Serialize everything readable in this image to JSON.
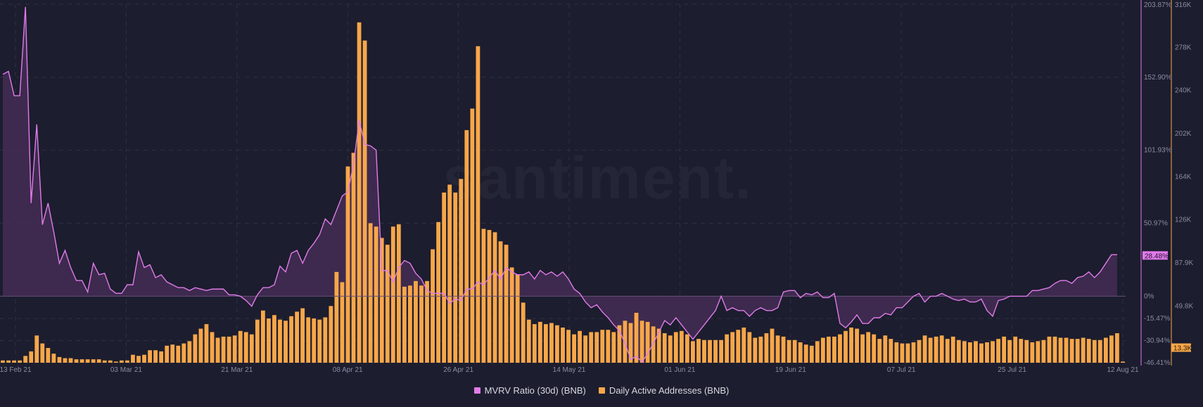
{
  "watermark": "santiment.",
  "colors": {
    "background": "#1c1d2e",
    "mvrv": "#e07bea",
    "mvrv_fill": "#4a2f5a",
    "daa": "#f7a749",
    "grid": "#2e3049",
    "axis_text": "#8a8ca3"
  },
  "legend": [
    {
      "label": "MVRV Ratio (30d) (BNB)",
      "color": "#e07bea"
    },
    {
      "label": "Daily Active Addresses (BNB)",
      "color": "#f7a749"
    }
  ],
  "chart_data": {
    "type": "bar+line",
    "x_ticks": [
      "13 Feb 21",
      "03 Mar 21",
      "21 Mar 21",
      "08 Apr 21",
      "26 Apr 21",
      "14 May 21",
      "01 Jun 21",
      "19 Jun 21",
      "07 Jul 21",
      "25 Jul 21",
      "12 Aug 21"
    ],
    "x_range": [
      "13 Feb 21",
      "12 Aug 21"
    ],
    "left_axis": {
      "series": "MVRV Ratio (30d) (BNB)",
      "ticks": [
        "203.87%",
        "152.90%",
        "101.93%",
        "50.97%",
        "0%",
        "-15.47%",
        "-30.94%",
        "-46.41%"
      ],
      "current_label": "28.48%",
      "unit": "%"
    },
    "right_axis": {
      "series": "Daily Active Addresses (BNB)",
      "ticks": [
        "316K",
        "278K",
        "240K",
        "202K",
        "164K",
        "126K",
        "87.9K",
        "49.8K"
      ],
      "current_label": "13.3K"
    },
    "series": [
      {
        "name": "MVRV Ratio (30d) (BNB)",
        "type": "area",
        "values": [
          155,
          157,
          140,
          140,
          202,
          65,
          120,
          50,
          65,
          45,
          23,
          32,
          20,
          11,
          11,
          3,
          23,
          15,
          16,
          5,
          2,
          2,
          8,
          8,
          31,
          20,
          22,
          13,
          15,
          10,
          8,
          6,
          6,
          4,
          6,
          5,
          4,
          5,
          5,
          5,
          1,
          1,
          0,
          -3,
          -7,
          1,
          6,
          6,
          8,
          21,
          17,
          30,
          32,
          23,
          32,
          37,
          43,
          54,
          50,
          60,
          70,
          73,
          92,
          123,
          106,
          105,
          102,
          18,
          18,
          10,
          20,
          25,
          23,
          16,
          12,
          4,
          2,
          2,
          2,
          -5,
          -2,
          -3,
          5,
          5,
          10,
          8,
          13,
          18,
          12,
          20,
          17,
          15,
          15,
          17,
          12,
          18,
          15,
          17,
          14,
          17,
          12,
          5,
          2,
          -4,
          -8,
          -6,
          -11,
          -15,
          -20,
          -24,
          -33,
          -44,
          -42,
          -46,
          -40,
          -33,
          -25,
          -17,
          -20,
          -15,
          -20,
          -25,
          -30,
          -25,
          -20,
          -15,
          -10,
          0,
          -10,
          -8,
          -10,
          -10,
          -14,
          -10,
          -8,
          -10,
          -10,
          -8,
          3,
          4,
          4,
          -1,
          2,
          1,
          3,
          -1,
          -1,
          2,
          -19,
          -22,
          -18,
          -13,
          -19,
          -19,
          -15,
          -15,
          -12,
          -13,
          -8,
          -8,
          -4,
          0,
          2,
          -4,
          0,
          0,
          2,
          0,
          -2,
          -3,
          -2,
          -4,
          -4,
          -2,
          -10,
          -14,
          -3,
          -2,
          0,
          0,
          0,
          0,
          4,
          4,
          5,
          6,
          9,
          11,
          11,
          9,
          13,
          14,
          17,
          13,
          17,
          23,
          29,
          29
        ]
      },
      {
        "name": "Daily Active Addresses (BNB)",
        "type": "bar",
        "values": [
          2,
          2,
          2,
          2,
          6,
          10,
          24,
          17,
          13,
          8,
          5,
          4,
          4,
          3,
          3,
          3,
          3,
          3,
          2,
          2,
          1,
          2,
          2,
          7,
          6,
          7,
          11,
          11,
          10,
          15,
          16,
          15,
          17,
          19,
          25,
          30,
          34,
          27,
          22,
          23,
          23,
          24,
          28,
          27,
          25,
          38,
          46,
          39,
          42,
          38,
          37,
          41,
          45,
          48,
          40,
          39,
          38,
          40,
          50,
          80,
          71,
          173,
          185,
          300,
          284,
          123,
          120,
          110,
          104,
          120,
          122,
          67,
          68,
          72,
          68,
          72,
          100,
          124,
          150,
          157,
          150,
          162,
          205,
          224,
          279,
          118,
          117,
          115,
          107,
          104,
          84,
          78,
          53,
          38,
          34,
          36,
          34,
          35,
          33,
          31,
          29,
          25,
          28,
          24,
          27,
          27,
          29,
          29,
          27,
          33,
          37,
          35,
          44,
          37,
          36,
          32,
          30,
          26,
          24,
          27,
          28,
          25,
          19,
          21,
          20,
          20,
          20,
          20,
          25,
          27,
          29,
          31,
          27,
          22,
          23,
          26,
          30,
          24,
          23,
          20,
          20,
          18,
          16,
          15,
          19,
          22,
          23,
          23,
          25,
          28,
          31,
          30,
          25,
          27,
          25,
          21,
          24,
          21,
          18,
          17,
          17,
          18,
          20,
          24,
          22,
          23,
          24,
          21,
          23,
          20,
          19,
          18,
          19,
          17,
          18,
          19,
          21,
          23,
          20,
          23,
          21,
          20,
          18,
          19,
          20,
          23,
          23,
          22,
          22,
          21,
          21,
          22,
          21,
          20,
          20,
          22,
          24,
          26,
          1
        ]
      }
    ]
  }
}
